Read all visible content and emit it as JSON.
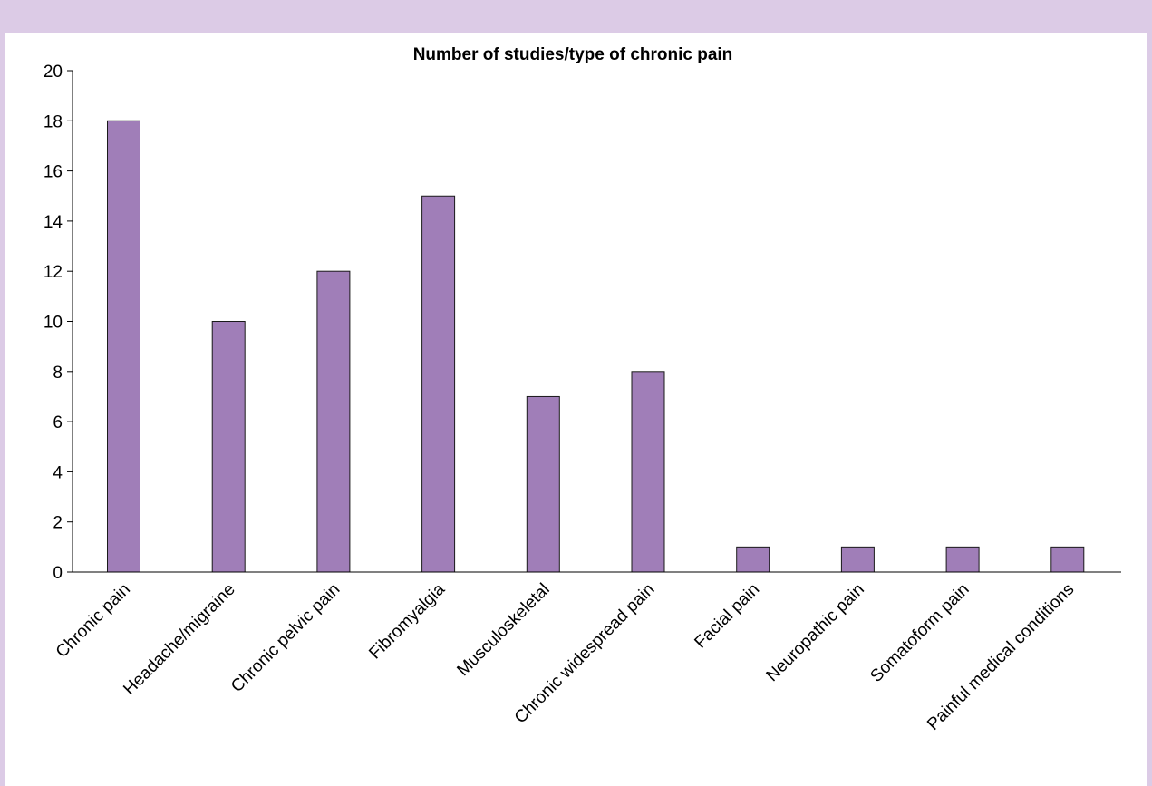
{
  "chart_data": {
    "type": "bar",
    "title": "Number of studies/type of chronic pain",
    "xlabel": "",
    "ylabel": "",
    "categories": [
      "Chronic pain",
      "Headache/migraine",
      "Chronic pelvic pain",
      "Fibromyalgia",
      "Musculoskeletal",
      "Chronic widespread pain",
      "Facial pain",
      "Neuropathic pain",
      "Somatoform pain",
      "Painful medical conditions"
    ],
    "values": [
      18,
      10,
      12,
      15,
      7,
      8,
      1,
      1,
      1,
      1
    ],
    "ylim": [
      0,
      20
    ],
    "yticks": [
      "0",
      "2",
      "4",
      "6",
      "8",
      "10",
      "12",
      "14",
      "16",
      "18",
      "20"
    ],
    "grid": false,
    "legend": "none",
    "bar_color": "#a07eb8",
    "frame_color": "#dccbe6"
  }
}
